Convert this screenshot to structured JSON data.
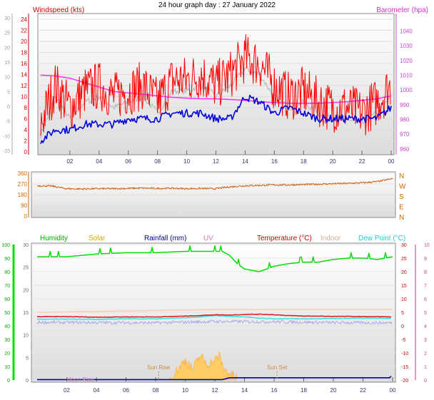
{
  "title": "24 hour graph day : 27 January 2022",
  "colors": {
    "wind": "#ff0000",
    "wind_avg": "#0000dd",
    "baro": "#ff33ff",
    "wind_light": "#c0c0c0",
    "direction": "#d2691e",
    "humidity": "#00dd00",
    "solar": "#ffcc66",
    "rain": "#0000aa",
    "temperature": "#dd2222",
    "indoor": "#ffccaa",
    "dewpoint": "#44e0e0",
    "uv": "#cc88cc"
  },
  "chart_data": [
    {
      "type": "line",
      "name": "wind-baro",
      "title": "24 hour graph day : 27 January 2022",
      "left_axis_label": "Windspeed (kts)",
      "right_axis_label": "Barometer (hpa)",
      "left_ticks": [
        "24",
        "22",
        "20",
        "18",
        "16",
        "14",
        "12",
        "10",
        "8",
        "6",
        "4",
        "2",
        "0"
      ],
      "inner_left_ticks": [
        "30",
        "25",
        "20",
        "15",
        "10",
        "5",
        "0",
        "-5",
        "-10",
        "-15"
      ],
      "right_ticks": [
        "1040",
        "1030",
        "1020",
        "1010",
        "1000",
        "990",
        "980",
        "970",
        "960"
      ],
      "x_ticks": [
        "02",
        "04",
        "06",
        "08",
        "10",
        "12",
        "14",
        "16",
        "18",
        "20",
        "22",
        "00"
      ],
      "ylim_wind": [
        0,
        24
      ],
      "ylim_baro": [
        958,
        1048
      ],
      "series": [
        {
          "key": "gust",
          "x": [
            0,
            1,
            2,
            3,
            4,
            5,
            6,
            7,
            8,
            9,
            10,
            11,
            12,
            13,
            14,
            15,
            16,
            17,
            18,
            19,
            20,
            21,
            22,
            23,
            24
          ],
          "values": [
            5,
            12,
            8,
            11,
            12,
            10,
            11,
            12,
            9,
            13,
            13,
            14,
            12,
            14,
            17,
            16,
            12,
            10,
            11,
            9,
            8,
            8,
            7,
            9,
            12
          ]
        },
        {
          "key": "average",
          "x": [
            0,
            1,
            2,
            3,
            4,
            5,
            6,
            7,
            8,
            9,
            10,
            11,
            12,
            13,
            14,
            15,
            16,
            17,
            18,
            19,
            20,
            21,
            22,
            23,
            24
          ],
          "values": [
            2,
            4,
            4,
            5,
            5,
            5,
            6,
            6,
            6,
            7,
            7,
            7,
            6,
            6,
            10,
            9,
            7,
            8,
            7,
            6,
            6,
            6,
            6,
            6,
            8
          ]
        },
        {
          "key": "pressure",
          "x": [
            0,
            1,
            2,
            3,
            4,
            5,
            6,
            7,
            8,
            9,
            10,
            11,
            12,
            13,
            14,
            15,
            16,
            17,
            18,
            19,
            20,
            21,
            22,
            23,
            24
          ],
          "values": [
            1010,
            1009.5,
            1008,
            1005,
            1002,
            999,
            998,
            997,
            996,
            995,
            994.5,
            994,
            994,
            993.5,
            993,
            992,
            991.5,
            991,
            991,
            991,
            991.5,
            992,
            993,
            994,
            996
          ]
        }
      ]
    },
    {
      "type": "line",
      "name": "wind-direction",
      "left_ticks": [
        "360",
        "270",
        "180",
        "90",
        "0"
      ],
      "compass": [
        "N",
        "W",
        "S",
        "E",
        "N"
      ],
      "x": [
        0,
        1,
        2,
        3,
        4,
        5,
        6,
        7,
        8,
        9,
        10,
        11,
        12,
        13,
        14,
        15,
        16,
        17,
        18,
        19,
        20,
        21,
        22,
        23,
        24
      ],
      "values": [
        255,
        252,
        230,
        228,
        230,
        230,
        232,
        235,
        232,
        234,
        230,
        232,
        230,
        245,
        255,
        258,
        262,
        262,
        265,
        268,
        272,
        275,
        280,
        290,
        315
      ],
      "ylim": [
        0,
        360
      ]
    },
    {
      "type": "line",
      "name": "climate",
      "labels": [
        "Humidity",
        "Solar",
        "Rainfall (mm)",
        "UV",
        "Temperature (°C)",
        "Indoor",
        "Dew Point (°C)"
      ],
      "humidity_ticks": [
        "100",
        "90",
        "80",
        "70",
        "60",
        "50",
        "40",
        "30",
        "20",
        "10",
        "0"
      ],
      "solar_ticks": [
        "30",
        "25",
        "20",
        "15",
        "10",
        "5",
        "0"
      ],
      "temp_ticks": [
        "30",
        "25",
        "20",
        "15",
        "10",
        "5",
        "0",
        "-5",
        "-10",
        "-15",
        "-20"
      ],
      "uv_ticks": [
        "10",
        "9",
        "8",
        "7",
        "6",
        "5",
        "4",
        "3",
        "2",
        "1",
        "0"
      ],
      "x_ticks": [
        "02",
        "04",
        "06",
        "08",
        "10",
        "12",
        "14",
        "16",
        "18",
        "20",
        "22",
        "00"
      ],
      "annotations": [
        "Sun Rise",
        "Sun Set",
        "Moon Rise"
      ],
      "sun_rise_hour": 8.2,
      "sun_set_hour": 16.2,
      "moon_rise_hour": 2.9,
      "series": [
        {
          "key": "humidity",
          "x": [
            0,
            2,
            4,
            6,
            8,
            10,
            11,
            12,
            12.5,
            13,
            13.5,
            14,
            15,
            16,
            17,
            18,
            19,
            20,
            21,
            22,
            23,
            24
          ],
          "values": [
            91,
            91,
            93,
            94,
            94,
            95,
            95,
            95,
            95,
            92,
            86,
            82,
            80,
            84,
            86,
            87,
            87,
            89,
            90,
            90,
            89,
            91
          ]
        },
        {
          "key": "indoor",
          "x": [
            0,
            6,
            12,
            18,
            24
          ],
          "values": [
            5,
            5.5,
            6,
            6,
            6
          ]
        },
        {
          "key": "temperature",
          "x": [
            0,
            2,
            4,
            6,
            8,
            10,
            11,
            12,
            13,
            14,
            15,
            16,
            17,
            18,
            19,
            20,
            21,
            22,
            23,
            24
          ],
          "values": [
            3.4,
            3.4,
            3.2,
            3.3,
            3.3,
            3.6,
            3.8,
            4.1,
            4.0,
            4.2,
            4.3,
            4.1,
            3.8,
            3.6,
            3.6,
            3.5,
            3.5,
            3.4,
            3.4,
            3.3
          ]
        },
        {
          "key": "dewpoint",
          "x": [
            0,
            2,
            4,
            6,
            8,
            10,
            11,
            12,
            13,
            14,
            15,
            16,
            17,
            18,
            19,
            20,
            21,
            22,
            23,
            24
          ],
          "values": [
            2.5,
            2.5,
            2.4,
            2.6,
            2.6,
            3.0,
            3.3,
            3.8,
            3.5,
            3.3,
            2.8,
            2.6,
            2.6,
            2.6,
            2.6,
            2.7,
            2.8,
            2.8,
            2.8,
            2.7
          ]
        },
        {
          "key": "uv_trace",
          "x": [
            0,
            4,
            8,
            12,
            16,
            20,
            24
          ],
          "values": [
            1.3,
            1.2,
            1.1,
            1.6,
            1.5,
            1.2,
            1.1
          ]
        },
        {
          "key": "solar",
          "x": [
            9,
            9.5,
            10,
            10.5,
            11,
            11.5,
            12,
            12.3,
            12.6,
            13,
            13.5
          ],
          "values": [
            0,
            2,
            4,
            2,
            5,
            3,
            4,
            5,
            2,
            1,
            0
          ]
        },
        {
          "key": "rain",
          "x": [
            0,
            12.5,
            13,
            23.8,
            24
          ],
          "values": [
            0.1,
            0.1,
            0.5,
            0.5,
            1.2
          ]
        }
      ]
    }
  ]
}
